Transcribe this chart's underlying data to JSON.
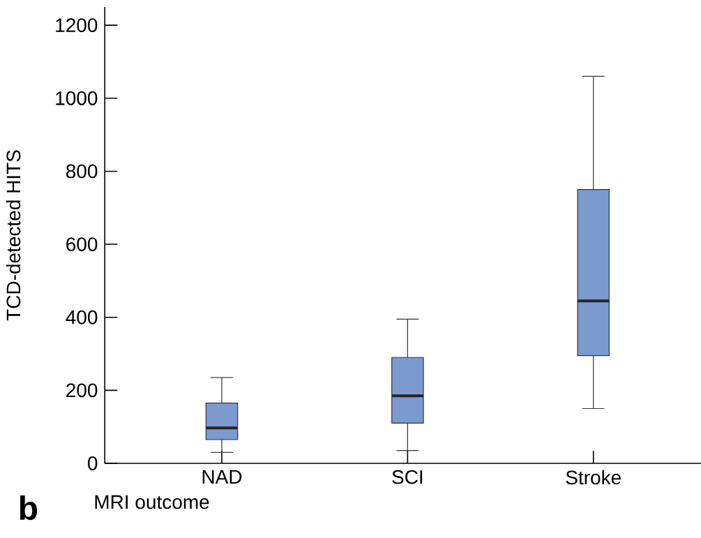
{
  "chart_data": {
    "type": "box",
    "ylabel": "TCD-detected HITS",
    "xlabel": "MRI outcome",
    "annotations": [
      "b"
    ],
    "categories": [
      "NAD",
      "SCI",
      "Stroke"
    ],
    "color": "#7b9bd0",
    "boxes": [
      {
        "low": 30,
        "q1": 65,
        "median": 97,
        "q3": 165,
        "high": 235
      },
      {
        "low": 35,
        "q1": 110,
        "median": 185,
        "q3": 290,
        "high": 395
      },
      {
        "low": 150,
        "q1": 295,
        "median": 445,
        "q3": 750,
        "high": 1060
      }
    ],
    "ylim": [
      0,
      1250
    ],
    "yticks": [
      0,
      200,
      400,
      600,
      800,
      1000,
      1200
    ]
  }
}
